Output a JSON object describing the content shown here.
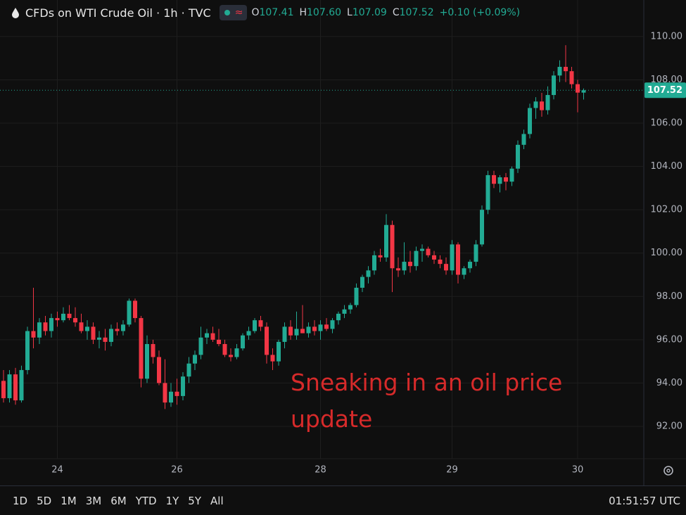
{
  "chart_data": {
    "type": "candlestick",
    "title": "CFDs on WTI Crude Oil · 1h · TVC",
    "legend": {
      "items": [
        {
          "letter": "O",
          "value": 107.41,
          "label": "107.41"
        },
        {
          "letter": "H",
          "value": 107.6,
          "label": "107.60"
        },
        {
          "letter": "L",
          "value": 107.09,
          "label": "107.09"
        },
        {
          "letter": "C",
          "value": 107.52,
          "label": "107.52"
        }
      ],
      "change": "+0.10 (+0.09%)"
    },
    "annotation": "Sneaking in an oil price update",
    "up_color": "#22ab94",
    "down_color": "#f23645",
    "last_price": {
      "value": 107.52,
      "label": "107.52"
    },
    "ylim": [
      90.57,
      110.55
    ],
    "yticks": [
      {
        "value": 92,
        "label": "92.00"
      },
      {
        "value": 94,
        "label": "94.00"
      },
      {
        "value": 96,
        "label": "96.00"
      },
      {
        "value": 98,
        "label": "98.00"
      },
      {
        "value": 100,
        "label": "100.00"
      },
      {
        "value": 102,
        "label": "102.00"
      },
      {
        "value": 104,
        "label": "104.00"
      },
      {
        "value": 106,
        "label": "106.00"
      },
      {
        "value": 108,
        "label": "108.00"
      },
      {
        "value": 110,
        "label": "110.00"
      }
    ],
    "grid": true,
    "categories": [
      null,
      null,
      null,
      null,
      null,
      null,
      null,
      null,
      null,
      "24",
      null,
      null,
      null,
      null,
      null,
      null,
      null,
      null,
      null,
      null,
      null,
      null,
      null,
      null,
      null,
      null,
      null,
      null,
      null,
      "26",
      null,
      null,
      null,
      null,
      null,
      null,
      null,
      null,
      null,
      null,
      null,
      null,
      null,
      null,
      null,
      null,
      null,
      null,
      null,
      null,
      null,
      null,
      null,
      "28",
      null,
      null,
      null,
      null,
      null,
      null,
      null,
      null,
      null,
      null,
      null,
      null,
      null,
      null,
      null,
      null,
      null,
      null,
      null,
      null,
      null,
      "29",
      null,
      null,
      null,
      null,
      null,
      null,
      null,
      null,
      null,
      null,
      null,
      null,
      null,
      null,
      null,
      null,
      null,
      null,
      null,
      null,
      "30",
      null
    ],
    "open": [
      94.1,
      93.3,
      94.4,
      93.2,
      94.6,
      96.4,
      96.1,
      96.8,
      96.4,
      97.0,
      96.9,
      97.2,
      97.0,
      96.8,
      96.4,
      96.6,
      96.0,
      96.1,
      95.9,
      96.5,
      96.4,
      96.7,
      97.8,
      97.0,
      94.2,
      95.8,
      95.2,
      94.0,
      93.1,
      93.6,
      93.4,
      94.3,
      94.9,
      95.3,
      96.1,
      96.3,
      96.0,
      95.8,
      95.3,
      95.2,
      95.6,
      96.2,
      96.4,
      96.9,
      96.6,
      95.3,
      95.0,
      95.9,
      96.6,
      96.2,
      96.5,
      96.3,
      96.6,
      96.4,
      96.7,
      96.5,
      96.9,
      97.2,
      97.4,
      97.6,
      98.4,
      98.9,
      99.2,
      99.9,
      99.8,
      101.3,
      99.3,
      99.2,
      99.6,
      99.4,
      100.1,
      100.2,
      99.9,
      99.7,
      99.5,
      99.2,
      100.4,
      99.0,
      99.3,
      99.6,
      100.4,
      102.0,
      103.6,
      103.2,
      103.5,
      103.3,
      103.9,
      105.0,
      105.5,
      106.7,
      107.0,
      106.6,
      107.3,
      108.2,
      108.6,
      108.4,
      107.8,
      107.41
    ],
    "high": [
      94.6,
      94.6,
      94.7,
      94.8,
      96.6,
      98.4,
      97.0,
      97.1,
      97.2,
      97.3,
      97.5,
      97.6,
      97.5,
      97.2,
      96.9,
      96.8,
      96.4,
      96.5,
      96.7,
      96.8,
      96.9,
      97.9,
      97.9,
      97.1,
      96.2,
      96.0,
      95.5,
      95.1,
      94.0,
      94.2,
      94.5,
      95.2,
      95.5,
      96.6,
      96.5,
      96.6,
      96.5,
      96.0,
      95.6,
      95.8,
      96.3,
      96.6,
      97.0,
      97.1,
      96.8,
      95.6,
      96.0,
      96.8,
      96.9,
      97.3,
      97.6,
      96.8,
      96.9,
      96.9,
      97.0,
      97.0,
      97.3,
      97.6,
      97.7,
      98.6,
      99.0,
      99.4,
      100.1,
      100.2,
      101.8,
      101.5,
      99.8,
      100.5,
      100.1,
      100.3,
      100.4,
      100.3,
      100.1,
      99.9,
      99.8,
      100.6,
      100.5,
      99.4,
      99.7,
      100.6,
      102.2,
      103.8,
      103.8,
      103.6,
      103.7,
      104.0,
      105.2,
      105.7,
      106.9,
      107.2,
      107.4,
      107.7,
      108.4,
      108.9,
      109.6,
      108.6,
      108.0,
      107.6
    ],
    "low": [
      93.1,
      93.1,
      93.0,
      93.1,
      94.4,
      95.6,
      95.8,
      96.2,
      96.1,
      96.6,
      96.8,
      96.9,
      96.6,
      96.3,
      96.0,
      95.8,
      95.6,
      95.5,
      95.7,
      96.2,
      96.2,
      96.6,
      96.8,
      93.8,
      94.0,
      94.9,
      93.9,
      92.8,
      92.9,
      93.0,
      93.2,
      94.0,
      94.6,
      95.1,
      95.8,
      95.9,
      95.7,
      95.2,
      95.0,
      95.1,
      95.5,
      96.0,
      96.3,
      96.4,
      94.9,
      94.6,
      94.8,
      95.6,
      96.0,
      96.0,
      96.3,
      96.1,
      96.2,
      96.0,
      96.4,
      96.3,
      96.7,
      97.0,
      97.2,
      97.5,
      98.2,
      98.6,
      99.0,
      99.6,
      99.6,
      98.2,
      98.9,
      99.0,
      99.1,
      99.2,
      99.6,
      99.8,
      99.5,
      99.3,
      99.0,
      99.0,
      98.6,
      98.8,
      99.1,
      99.4,
      100.3,
      101.8,
      103.0,
      102.8,
      102.9,
      103.1,
      103.7,
      104.8,
      105.3,
      106.2,
      106.3,
      106.4,
      107.1,
      107.9,
      107.9,
      107.6,
      106.5,
      107.09
    ],
    "close": [
      93.3,
      94.4,
      93.2,
      94.6,
      96.4,
      96.1,
      96.8,
      96.4,
      97.0,
      96.9,
      97.2,
      97.0,
      96.8,
      96.4,
      96.6,
      96.0,
      96.1,
      95.9,
      96.5,
      96.4,
      96.7,
      97.8,
      97.0,
      94.2,
      95.8,
      95.2,
      94.0,
      93.1,
      93.6,
      93.4,
      94.3,
      94.9,
      95.3,
      96.1,
      96.3,
      96.0,
      95.8,
      95.3,
      95.2,
      95.6,
      96.2,
      96.4,
      96.9,
      96.6,
      95.3,
      95.0,
      95.9,
      96.6,
      96.2,
      96.5,
      96.3,
      96.6,
      96.4,
      96.7,
      96.5,
      96.9,
      97.2,
      97.4,
      97.6,
      98.4,
      98.9,
      99.2,
      99.9,
      99.8,
      101.3,
      99.3,
      99.2,
      99.6,
      99.4,
      100.1,
      100.2,
      99.9,
      99.7,
      99.5,
      99.2,
      100.4,
      99.0,
      99.3,
      99.6,
      100.4,
      102.0,
      103.6,
      103.2,
      103.5,
      103.3,
      103.9,
      105.0,
      105.5,
      106.7,
      107.0,
      106.6,
      107.3,
      108.2,
      108.6,
      108.4,
      107.8,
      107.41,
      107.52
    ]
  },
  "toolbar": {
    "ranges": [
      "1D",
      "5D",
      "1M",
      "3M",
      "6M",
      "YTD",
      "1Y",
      "5Y",
      "All"
    ],
    "clock": "01:51:57 UTC"
  }
}
